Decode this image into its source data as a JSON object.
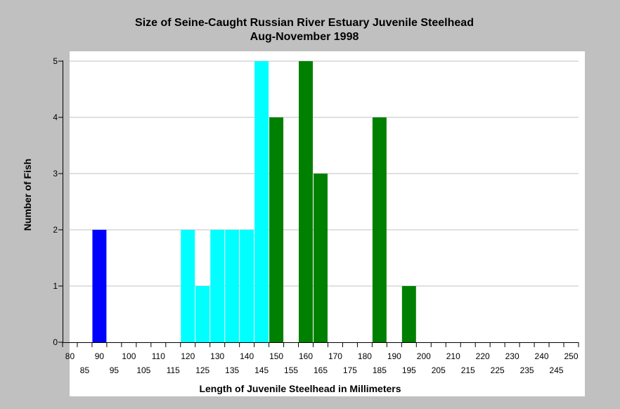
{
  "chart_data": {
    "type": "bar",
    "title": "Size of Seine-Caught Russian River Estuary Juvenile Steelhead",
    "subtitle": "Aug-November 1998",
    "xlabel": "Length of Juvenile Steelhead in Millimeters",
    "ylabel": "Number of Fish",
    "xlim": [
      77.5,
      252.5
    ],
    "ylim": [
      0,
      5
    ],
    "yticks": [
      0,
      1,
      2,
      3,
      4,
      5
    ],
    "xticks_upper": [
      80,
      90,
      100,
      110,
      120,
      130,
      140,
      150,
      160,
      170,
      180,
      190,
      200,
      210,
      220,
      230,
      240,
      250
    ],
    "xticks_lower": [
      85,
      95,
      105,
      115,
      125,
      135,
      145,
      155,
      165,
      175,
      185,
      195,
      205,
      215,
      225,
      235,
      245
    ],
    "grid": true,
    "bars": [
      {
        "x": 90,
        "y": 2,
        "color": "#0000ff"
      },
      {
        "x": 120,
        "y": 2,
        "color": "#00ffff"
      },
      {
        "x": 125,
        "y": 1,
        "color": "#00ffff"
      },
      {
        "x": 130,
        "y": 2,
        "color": "#00ffff"
      },
      {
        "x": 135,
        "y": 2,
        "color": "#00ffff"
      },
      {
        "x": 140,
        "y": 2,
        "color": "#00ffff"
      },
      {
        "x": 145,
        "y": 5,
        "color": "#00ffff"
      },
      {
        "x": 150,
        "y": 4,
        "color": "#008000"
      },
      {
        "x": 160,
        "y": 5,
        "color": "#008000"
      },
      {
        "x": 165,
        "y": 3,
        "color": "#008000"
      },
      {
        "x": 185,
        "y": 4,
        "color": "#008000"
      },
      {
        "x": 195,
        "y": 1,
        "color": "#008000"
      }
    ]
  }
}
